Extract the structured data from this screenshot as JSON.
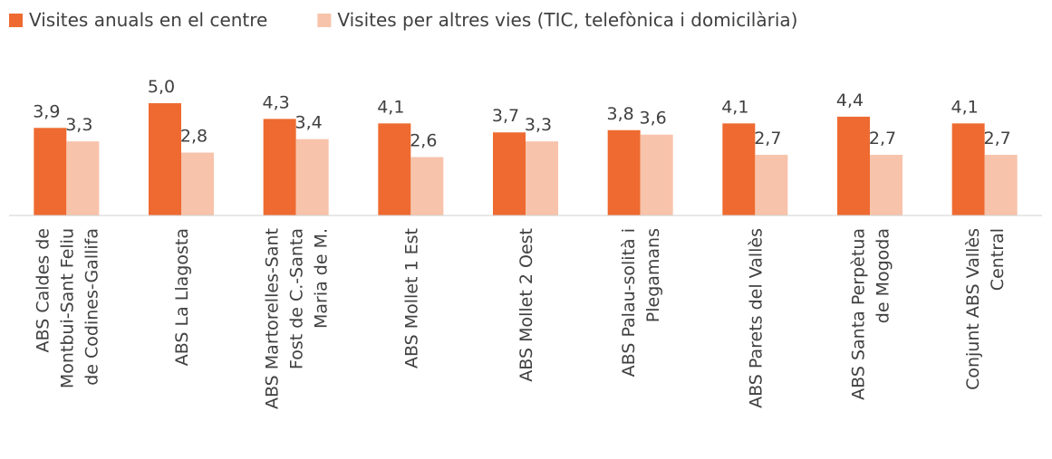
{
  "chart_data": {
    "type": "bar",
    "categories": [
      "ABS Caldes de\nMontbui-Sant Feliu\nde Codines-Gallifa",
      "ABS La Llagosta",
      "ABS Martorelles-Sant\nFost de C.-Santa\nMaria de M.",
      "ABS Mollet 1 Est",
      "ABS Mollet 2 Oest",
      "ABS Palau-solità i\nPlegamans",
      "ABS Parets del Vallès",
      "ABS Santa Perpètua\nde Mogoda",
      "Conjunt ABS Vallès\nCentral"
    ],
    "series": [
      {
        "name": "Visites anuals en el centre",
        "color": "#ee6a30",
        "values": [
          3.9,
          5.0,
          4.3,
          4.1,
          3.7,
          3.8,
          4.1,
          4.4,
          4.1
        ],
        "value_labels": [
          "3,9",
          "5,0",
          "4,3",
          "4,1",
          "3,7",
          "3,8",
          "4,1",
          "4,4",
          "4,1"
        ]
      },
      {
        "name": "Visites per altres vies (TIC, telefònica i domicilària)",
        "color": "#f7c3aa",
        "values": [
          3.3,
          2.8,
          3.4,
          2.6,
          3.3,
          3.6,
          2.7,
          2.7,
          2.7
        ],
        "value_labels": [
          "3,3",
          "2,8",
          "3,4",
          "2,6",
          "3,3",
          "3,6",
          "2,7",
          "2,7",
          "2,7"
        ]
      }
    ],
    "ylim": [
      0,
      5
    ],
    "legend": "top"
  }
}
